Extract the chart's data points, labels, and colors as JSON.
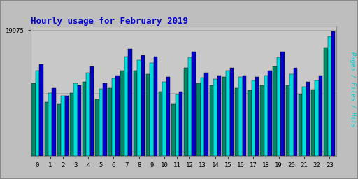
{
  "title": "Hourly usage for February 2019",
  "hours": [
    0,
    1,
    2,
    3,
    4,
    5,
    6,
    7,
    8,
    9,
    10,
    11,
    12,
    13,
    14,
    15,
    16,
    17,
    18,
    19,
    20,
    21,
    22,
    23
  ],
  "pages": [
    13500,
    10000,
    9500,
    11500,
    13200,
    10700,
    12300,
    15800,
    15200,
    14800,
    11800,
    9800,
    15600,
    12400,
    12200,
    13500,
    12500,
    12000,
    12800,
    15600,
    13000,
    11000,
    12000,
    19000
  ],
  "files": [
    11500,
    8500,
    8200,
    10000,
    11800,
    9000,
    10800,
    13500,
    13500,
    13000,
    10200,
    8200,
    14000,
    11500,
    11200,
    12500,
    10800,
    10400,
    11200,
    14200,
    11200,
    9800,
    10500,
    17200
  ],
  "hits": [
    14500,
    10800,
    9500,
    11200,
    14200,
    11500,
    12800,
    17000,
    16000,
    15800,
    12500,
    10200,
    16500,
    13200,
    12800,
    14000,
    12800,
    12500,
    13500,
    16500,
    14000,
    11800,
    12800,
    19800
  ],
  "ylim": [
    0,
    20500
  ],
  "ytick_val": 19975,
  "ytick_label": "19975",
  "ytick2_val": 9987,
  "bg_color": "#bebebe",
  "plot_bg": "#c8c8c8",
  "title_color": "#0000cc",
  "bar_color_files": "#008866",
  "bar_color_pages": "#00dddd",
  "bar_color_hits": "#0000cc",
  "ylabel_text": "Pages / Files / Hits",
  "ylabel_color": "#00cccc",
  "grid_color": "#aaaaaa",
  "border_color": "#888888"
}
